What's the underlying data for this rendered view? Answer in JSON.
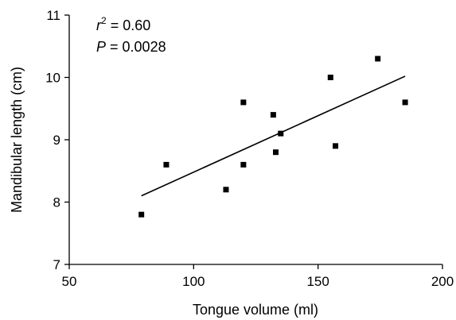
{
  "chart_data": {
    "type": "scatter",
    "xlabel": "Tongue volume (ml)",
    "ylabel": "Mandibular length (cm)",
    "xlim": [
      50,
      200
    ],
    "ylim": [
      7,
      11
    ],
    "x_ticks": [
      "50",
      "100",
      "150",
      "200"
    ],
    "y_ticks": [
      "7",
      "8",
      "9",
      "10",
      "11"
    ],
    "annotations": {
      "r2_symbol": "r",
      "r2_exp": "2",
      "r2_value": " = 0.60",
      "p_symbol": "P",
      "p_value": " = 0.0028"
    },
    "points": [
      {
        "x": 79,
        "y": 7.8
      },
      {
        "x": 89,
        "y": 8.6
      },
      {
        "x": 113,
        "y": 8.2
      },
      {
        "x": 120,
        "y": 9.6
      },
      {
        "x": 120,
        "y": 8.6
      },
      {
        "x": 132,
        "y": 9.4
      },
      {
        "x": 133,
        "y": 8.8
      },
      {
        "x": 135,
        "y": 9.1
      },
      {
        "x": 155,
        "y": 10.0
      },
      {
        "x": 157,
        "y": 8.9
      },
      {
        "x": 174,
        "y": 10.3
      },
      {
        "x": 185,
        "y": 9.6
      }
    ],
    "fit_line": {
      "x": [
        79,
        185
      ],
      "y": [
        8.1,
        10.02
      ]
    },
    "grid": false,
    "legend": "none",
    "marker": "square",
    "color": "#000000"
  }
}
